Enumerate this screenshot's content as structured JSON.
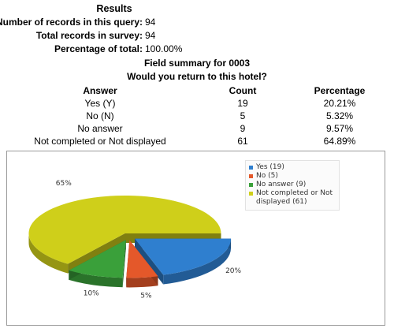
{
  "results": {
    "title": "Results",
    "rows": [
      {
        "label": "Number of records in this query:",
        "value": "94"
      },
      {
        "label": "Total records in survey:",
        "value": "94"
      },
      {
        "label": "Percentage of total:",
        "value": "100.00%"
      }
    ]
  },
  "field_summary": {
    "title": "Field summary for 0003",
    "question": "Would you return to this hotel?",
    "headers": {
      "answer": "Answer",
      "count": "Count",
      "percentage": "Percentage"
    },
    "rows": [
      {
        "answer": "Yes (Y)",
        "count": "19",
        "percentage": "20.21%"
      },
      {
        "answer": "No (N)",
        "count": "5",
        "percentage": "5.32%"
      },
      {
        "answer": "No answer",
        "count": "9",
        "percentage": "9.57%"
      },
      {
        "answer": "Not completed or Not displayed",
        "count": "61",
        "percentage": "64.89%"
      }
    ]
  },
  "chart_data": {
    "type": "pie",
    "categories": [
      "Yes (19)",
      "No (5)",
      "No answer (9)",
      "Not completed or Not displayed (61)"
    ],
    "values": [
      19,
      5,
      9,
      61
    ],
    "slice_labels": [
      "20%",
      "5%",
      "10%",
      "65%"
    ],
    "colors": [
      "#2f7fcf",
      "#e4582a",
      "#3aa03a",
      "#cfcf1a"
    ],
    "legend": {
      "placement": "top-right",
      "items": [
        {
          "text": "Yes (19)",
          "color": "#2f7fcf"
        },
        {
          "text": "No (5)",
          "color": "#e4582a"
        },
        {
          "text": "No answer (9)",
          "color": "#3aa03a"
        },
        {
          "text": "Not completed or Not displayed (61)",
          "color": "#cfcf1a"
        }
      ]
    }
  }
}
